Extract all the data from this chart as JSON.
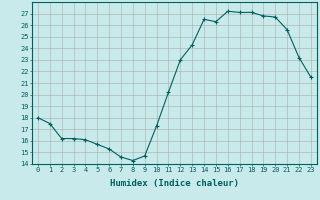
{
  "x": [
    0,
    1,
    2,
    3,
    4,
    5,
    6,
    7,
    8,
    9,
    10,
    11,
    12,
    13,
    14,
    15,
    16,
    17,
    18,
    19,
    20,
    21,
    22,
    23
  ],
  "y": [
    18,
    17.5,
    16.2,
    16.2,
    16.1,
    15.7,
    15.3,
    14.6,
    14.3,
    14.7,
    17.3,
    20.2,
    23.0,
    24.3,
    26.5,
    26.3,
    27.2,
    27.1,
    27.1,
    26.8,
    26.7,
    25.6,
    23.2,
    21.5
  ],
  "xlabel": "Humidex (Indice chaleur)",
  "xlim": [
    -0.5,
    23.5
  ],
  "ylim": [
    14,
    28
  ],
  "yticks": [
    14,
    15,
    16,
    17,
    18,
    19,
    20,
    21,
    22,
    23,
    24,
    25,
    26,
    27
  ],
  "xticks": [
    0,
    1,
    2,
    3,
    4,
    5,
    6,
    7,
    8,
    9,
    10,
    11,
    12,
    13,
    14,
    15,
    16,
    17,
    18,
    19,
    20,
    21,
    22,
    23
  ],
  "line_color": "#006060",
  "marker": "+",
  "bg_color": "#c8eaea",
  "grid_color": "#aaaaaa",
  "tick_color": "#006060"
}
